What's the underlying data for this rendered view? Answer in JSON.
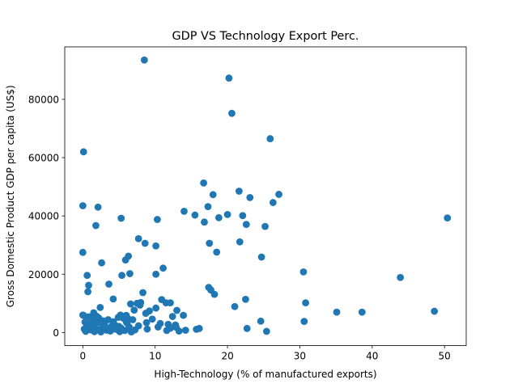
{
  "chart_data": {
    "type": "scatter",
    "title": "GDP VS Technology Export Perc.",
    "xlabel": "High-Technology (% of manufactured exports)",
    "ylabel": "Gross Domestic Product GDP per capita (US$)",
    "xlim": [
      -2.5,
      53
    ],
    "ylim": [
      -4500,
      98000
    ],
    "xticks": [
      0,
      10,
      20,
      30,
      40,
      50
    ],
    "yticks": [
      0,
      20000,
      40000,
      60000,
      80000
    ],
    "ytick_labels": [
      "0",
      "20000",
      "40000",
      "60000",
      "80000"
    ],
    "grid": false,
    "legend": "none",
    "marker_color": "#1f77b4",
    "series": [
      {
        "points": [
          [
            8.5,
            93500
          ],
          [
            20.2,
            87300
          ],
          [
            20.6,
            75200
          ],
          [
            25.9,
            66500
          ],
          [
            0.1,
            62000
          ],
          [
            16.7,
            51300
          ],
          [
            21.6,
            48500
          ],
          [
            18.0,
            47300
          ],
          [
            27.1,
            47400
          ],
          [
            23.1,
            46300
          ],
          [
            26.3,
            44600
          ],
          [
            0.0,
            43500
          ],
          [
            2.1,
            43000
          ],
          [
            17.3,
            43200
          ],
          [
            14.0,
            41600
          ],
          [
            15.5,
            40300
          ],
          [
            20.0,
            40500
          ],
          [
            22.1,
            40100
          ],
          [
            18.8,
            39400
          ],
          [
            5.3,
            39200
          ],
          [
            10.3,
            38800
          ],
          [
            50.4,
            39300
          ],
          [
            16.8,
            37900
          ],
          [
            22.6,
            37100
          ],
          [
            1.8,
            36700
          ],
          [
            25.2,
            36400
          ],
          [
            7.7,
            32200
          ],
          [
            8.6,
            30600
          ],
          [
            17.5,
            30600
          ],
          [
            21.7,
            31100
          ],
          [
            10.1,
            29700
          ],
          [
            0.0,
            27500
          ],
          [
            18.5,
            27600
          ],
          [
            24.7,
            25900
          ],
          [
            6.3,
            26200
          ],
          [
            5.9,
            24900
          ],
          [
            2.6,
            23900
          ],
          [
            11.1,
            22100
          ],
          [
            30.5,
            20800
          ],
          [
            6.5,
            20200
          ],
          [
            10.1,
            20000
          ],
          [
            0.6,
            19600
          ],
          [
            5.4,
            19600
          ],
          [
            43.9,
            18900
          ],
          [
            0.8,
            16200
          ],
          [
            3.6,
            16600
          ],
          [
            17.4,
            15500
          ],
          [
            17.7,
            14600
          ],
          [
            0.7,
            14000
          ],
          [
            8.3,
            13700
          ],
          [
            18.2,
            13100
          ],
          [
            4.2,
            11500
          ],
          [
            10.9,
            11300
          ],
          [
            22.5,
            11400
          ],
          [
            11.5,
            10200
          ],
          [
            12.1,
            10200
          ],
          [
            21.0,
            8900
          ],
          [
            30.8,
            10200
          ],
          [
            7.5,
            10000
          ],
          [
            8.0,
            10300
          ],
          [
            6.6,
            9800
          ],
          [
            7.9,
            9400
          ],
          [
            10.1,
            8400
          ],
          [
            2.4,
            8600
          ],
          [
            7.1,
            7700
          ],
          [
            13.0,
            7600
          ],
          [
            35.1,
            7000
          ],
          [
            38.6,
            7000
          ],
          [
            48.6,
            7300
          ],
          [
            1.5,
            6800
          ],
          [
            5.2,
            6000
          ],
          [
            6.0,
            5900
          ],
          [
            8.7,
            6600
          ],
          [
            12.4,
            5500
          ],
          [
            13.9,
            5900
          ],
          [
            0.1,
            5900
          ],
          [
            0.8,
            5400
          ],
          [
            2.2,
            5000
          ],
          [
            3.5,
            4400
          ],
          [
            4.9,
            5200
          ],
          [
            5.6,
            4900
          ],
          [
            6.9,
            4400
          ],
          [
            1.3,
            4300
          ],
          [
            9.6,
            4600
          ],
          [
            24.6,
            3900
          ],
          [
            30.6,
            3800
          ],
          [
            0.3,
            3600
          ],
          [
            1.9,
            3300
          ],
          [
            3.0,
            3100
          ],
          [
            4.2,
            3700
          ],
          [
            6.1,
            3300
          ],
          [
            8.8,
            3400
          ],
          [
            11.8,
            2800
          ],
          [
            12.8,
            2600
          ],
          [
            0.6,
            2400
          ],
          [
            1.4,
            2100
          ],
          [
            2.7,
            2500
          ],
          [
            3.9,
            2000
          ],
          [
            5.0,
            2100
          ],
          [
            6.4,
            1900
          ],
          [
            7.7,
            2300
          ],
          [
            10.4,
            1900
          ],
          [
            12.1,
            1500
          ],
          [
            15.7,
            1100
          ],
          [
            16.1,
            1400
          ],
          [
            22.7,
            1400
          ],
          [
            0.2,
            1200
          ],
          [
            1.1,
            900
          ],
          [
            2.0,
            1000
          ],
          [
            3.3,
            800
          ],
          [
            4.6,
            1100
          ],
          [
            5.8,
            700
          ],
          [
            7.2,
            900
          ],
          [
            8.9,
            1200
          ],
          [
            11.6,
            700
          ],
          [
            13.3,
            500
          ],
          [
            14.2,
            800
          ],
          [
            0.4,
            400
          ],
          [
            1.6,
            300
          ],
          [
            2.5,
            200
          ],
          [
            3.8,
            500
          ],
          [
            5.1,
            300
          ],
          [
            6.7,
            200
          ],
          [
            25.4,
            400
          ],
          [
            0.0,
            6000
          ],
          [
            1.9,
            5600
          ],
          [
            2.8,
            4000
          ],
          [
            4.4,
            2700
          ],
          [
            5.3,
            1500
          ],
          [
            0.9,
            2900
          ],
          [
            3.1,
            1600
          ],
          [
            6.2,
            4900
          ],
          [
            2.3,
            700
          ],
          [
            4.0,
            1300
          ],
          [
            9.2,
            7400
          ],
          [
            10.7,
            3100
          ],
          [
            12.9,
            1800
          ],
          [
            1.2,
            4800
          ],
          [
            0.5,
            1900
          ],
          [
            6.0,
            3700
          ]
        ]
      }
    ]
  }
}
